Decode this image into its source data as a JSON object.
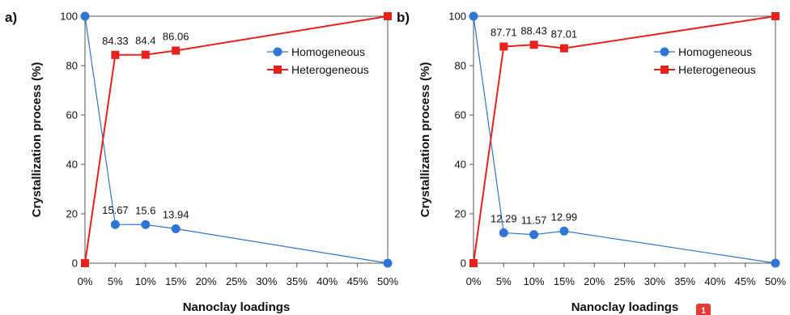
{
  "chart_data": [
    {
      "type": "line",
      "panel_label": "a)",
      "xlabel": "Nanoclay loadings",
      "ylabel": "Crystallization process (%)",
      "x_ticks": [
        "0%",
        "5%",
        "10%",
        "15%",
        "20%",
        "25%",
        "30%",
        "35%",
        "40%",
        "45%",
        "50%"
      ],
      "x_range": [
        0,
        50
      ],
      "ylim": [
        0,
        100
      ],
      "y_ticks": [
        "0",
        "20",
        "40",
        "60",
        "80",
        "100"
      ],
      "grid": false,
      "legend_position": "center-right",
      "series": [
        {
          "name": "Homogeneous",
          "color": "#2e75d6",
          "marker": "circle",
          "x": [
            0,
            5,
            10,
            15,
            50
          ],
          "values": [
            100,
            15.67,
            15.6,
            13.94,
            0
          ],
          "labels": [
            "",
            "15.67",
            "15.6",
            "13.94",
            ""
          ]
        },
        {
          "name": "Heterogeneous",
          "color": "#e8211d",
          "marker": "square",
          "x": [
            0,
            5,
            10,
            15,
            50
          ],
          "values": [
            0,
            84.33,
            84.4,
            86.06,
            100
          ],
          "labels": [
            "",
            "84.33",
            "84.4",
            "86.06",
            ""
          ]
        }
      ]
    },
    {
      "type": "line",
      "panel_label": "b)",
      "xlabel": "Nanoclay loadings",
      "ylabel": "Crystallization process (%)",
      "x_ticks": [
        "0%",
        "5%",
        "10%",
        "15%",
        "20%",
        "25%",
        "30%",
        "35%",
        "40%",
        "45%",
        "50%"
      ],
      "x_range": [
        0,
        50
      ],
      "ylim": [
        0,
        100
      ],
      "y_ticks": [
        "0",
        "20",
        "40",
        "60",
        "80",
        "100"
      ],
      "grid": false,
      "legend_position": "center-right",
      "series": [
        {
          "name": "Homogeneous",
          "color": "#2e75d6",
          "marker": "circle",
          "x": [
            0,
            5,
            10,
            15,
            50
          ],
          "values": [
            100,
            12.29,
            11.57,
            12.99,
            0
          ],
          "labels": [
            "",
            "12.29",
            "11.57",
            "12.99",
            ""
          ]
        },
        {
          "name": "Heterogeneous",
          "color": "#e8211d",
          "marker": "square",
          "x": [
            0,
            5,
            10,
            15,
            50
          ],
          "values": [
            0,
            87.71,
            88.43,
            87.01,
            100
          ],
          "labels": [
            "",
            "87.71",
            "88.43",
            "87.01",
            ""
          ]
        }
      ]
    }
  ],
  "badge": {
    "text": "1",
    "color": "#e53935"
  }
}
